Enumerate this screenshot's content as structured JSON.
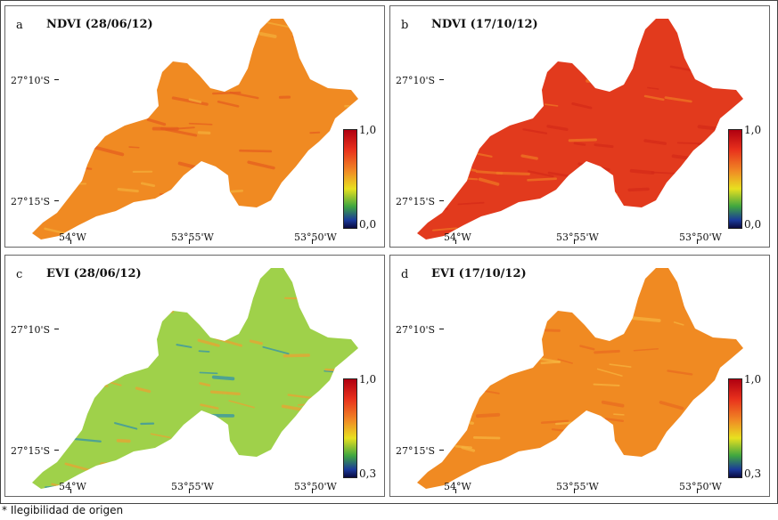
{
  "panels": [
    {
      "id": "a",
      "letter": "a",
      "title": "NDVI (28/06/12)",
      "cb_max": "1,0",
      "cb_min": "0,0",
      "colors": [
        "#f08a22",
        "#e45b1e",
        "#f3b13a"
      ],
      "colormap": "red-yellow-green-blue"
    },
    {
      "id": "b",
      "letter": "b",
      "title": "NDVI (17/10/12)",
      "cb_max": "1,0",
      "cb_min": "0,0",
      "colors": [
        "#e23a1d",
        "#d42a18",
        "#f07a24"
      ],
      "colormap": "red-yellow-green-blue"
    },
    {
      "id": "c",
      "letter": "c",
      "title": "EVI (28/06/12)",
      "cb_max": "1,0",
      "cb_min": "0,3",
      "colors": [
        "#9fd14a",
        "#2c8fb0",
        "#f0a030"
      ],
      "colormap": "red-yellow-green-blue"
    },
    {
      "id": "d",
      "letter": "d",
      "title": "EVI (17/10/12)",
      "cb_max": "1,0",
      "cb_min": "0,3",
      "colors": [
        "#f08a22",
        "#e86a20",
        "#f6b640"
      ],
      "colormap": "red-yellow-green-blue"
    }
  ],
  "axes": {
    "lat_top": "27°10'S",
    "lat_bottom": "27°15'S",
    "lon_1": "54°W",
    "lon_2": "53°55'W",
    "lon_3": "53°50'W"
  },
  "footnote": "* Ilegibilidad de origen"
}
